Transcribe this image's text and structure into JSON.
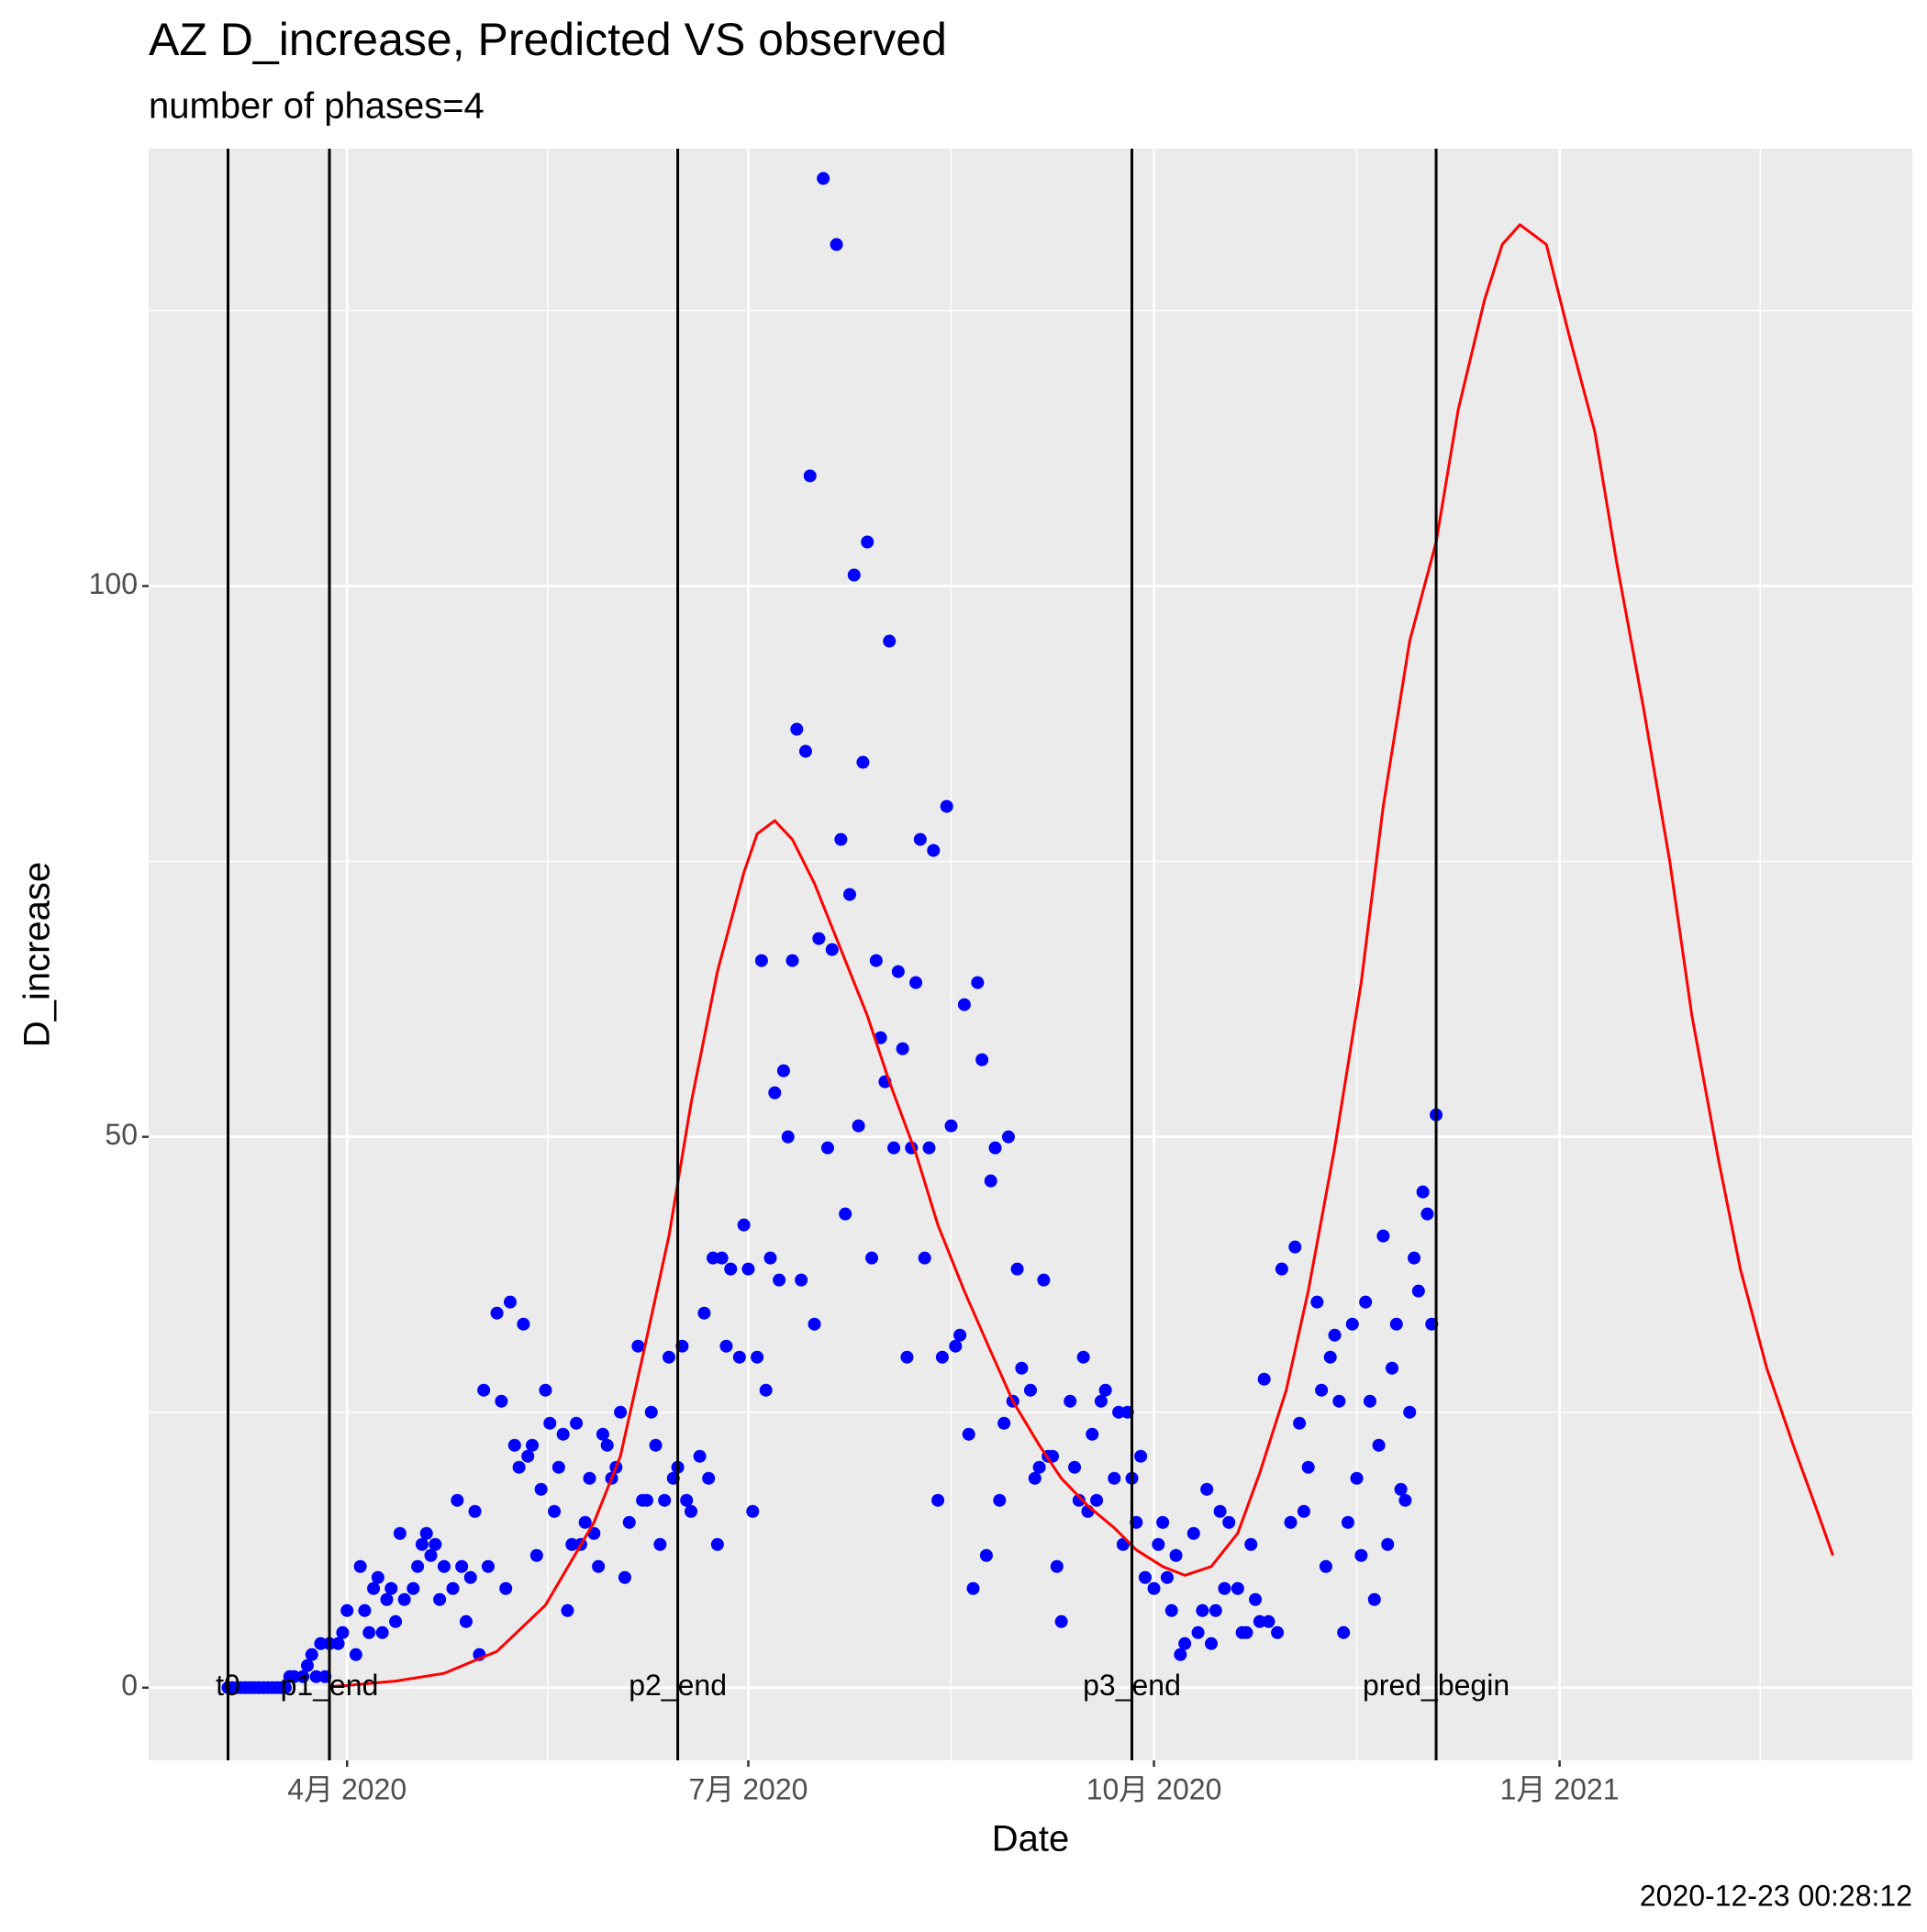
{
  "chart_data": {
    "type": "scatter",
    "title": "AZ D_increase, Predicted VS observed",
    "subtitle": "number of phases=4",
    "caption": "2020-12-23 00:28:12",
    "xlabel": "Date",
    "ylabel": "D_increase",
    "xlim": [
      18308,
      18708
    ],
    "ylim": [
      -6.6,
      139.7
    ],
    "xticks": [
      {
        "value": 18353,
        "label": "4月 2020"
      },
      {
        "value": 18444,
        "label": "7月 2020"
      },
      {
        "value": 18536,
        "label": "10月 2020"
      },
      {
        "value": 18628,
        "label": "1月 2021"
      }
    ],
    "yticks": [
      0,
      50,
      100
    ],
    "xminor": [
      18398.5,
      18490,
      18582,
      18673.5
    ],
    "yminor": [
      25,
      75,
      125
    ],
    "grid": true,
    "vlines": [
      {
        "x": 18326,
        "label": "t0"
      },
      {
        "x": 18349,
        "label": "p1_end"
      },
      {
        "x": 18428,
        "label": "p2_end"
      },
      {
        "x": 18531,
        "label": "p3_end"
      },
      {
        "x": 18600,
        "label": "pred_begin"
      }
    ],
    "series": [
      {
        "type": "scatter",
        "color": "#0000ff",
        "x": [
          18326,
          18327,
          18328,
          18329,
          18330,
          18331,
          18332,
          18333,
          18334,
          18335,
          18336,
          18337,
          18338,
          18339,
          18340,
          18341,
          18343,
          18344,
          18345,
          18346,
          18347,
          18348,
          18349,
          18351,
          18352,
          18353,
          18355,
          18356,
          18357,
          18358,
          18359,
          18360,
          18361,
          18362,
          18363,
          18364,
          18365,
          18366,
          18368,
          18369,
          18370,
          18371,
          18372,
          18373,
          18374,
          18375,
          18377,
          18378,
          18379,
          18380,
          18381,
          18382,
          18383,
          18384,
          18385,
          18387,
          18388,
          18389,
          18390,
          18391,
          18392,
          18393,
          18394,
          18395,
          18396,
          18397,
          18398,
          18399,
          18400,
          18401,
          18402,
          18403,
          18404,
          18405,
          18406,
          18407,
          18408,
          18409,
          18410,
          18411,
          18412,
          18413,
          18414,
          18415,
          18416,
          18417,
          18419,
          18420,
          18421,
          18422,
          18423,
          18424,
          18425,
          18426,
          18427,
          18428,
          18429,
          18430,
          18431,
          18433,
          18434,
          18435,
          18436,
          18437,
          18438,
          18439,
          18440,
          18442,
          18443,
          18444,
          18445,
          18446,
          18447,
          18448,
          18449,
          18450,
          18451,
          18452,
          18453,
          18454,
          18455,
          18456,
          18457,
          18458,
          18459,
          18460,
          18461,
          18462,
          18463,
          18464,
          18465,
          18466,
          18467,
          18468,
          18469,
          18470,
          18471,
          18472,
          18473,
          18474,
          18475,
          18476,
          18477,
          18478,
          18479,
          18480,
          18481,
          18482,
          18483,
          18484,
          18485,
          18486,
          18487,
          18488,
          18489,
          18490,
          18491,
          18492,
          18493,
          18494,
          18495,
          18496,
          18497,
          18498,
          18499,
          18500,
          18501,
          18502,
          18503,
          18504,
          18505,
          18506,
          18508,
          18509,
          18510,
          18511,
          18512,
          18513,
          18514,
          18515,
          18517,
          18518,
          18519,
          18520,
          18521,
          18522,
          18523,
          18524,
          18525,
          18527,
          18528,
          18529,
          18530,
          18531,
          18532,
          18533,
          18534,
          18536,
          18537,
          18538,
          18539,
          18540,
          18541,
          18542,
          18543,
          18545,
          18546,
          18547,
          18548,
          18549,
          18550,
          18551,
          18552,
          18553,
          18555,
          18556,
          18557,
          18558,
          18559,
          18560,
          18561,
          18562,
          18564,
          18565,
          18567,
          18568,
          18569,
          18570,
          18571,
          18573,
          18574,
          18575,
          18576,
          18577,
          18578,
          18579,
          18580,
          18581,
          18582,
          18583,
          18584,
          18585,
          18586,
          18587,
          18588,
          18589,
          18590,
          18591,
          18592,
          18593,
          18594,
          18595,
          18596,
          18597,
          18598,
          18599,
          18600
        ],
        "values": [
          0,
          0,
          0,
          0,
          0,
          0,
          0,
          0,
          0,
          0,
          0,
          0,
          0,
          0,
          1,
          1,
          1,
          2,
          3,
          1,
          4,
          1,
          4,
          4,
          5,
          7,
          3,
          11,
          7,
          5,
          9,
          10,
          5,
          8,
          9,
          6,
          14,
          8,
          9,
          11,
          13,
          14,
          12,
          13,
          8,
          11,
          9,
          17,
          11,
          6,
          10,
          16,
          3,
          27,
          11,
          34,
          26,
          9,
          35,
          22,
          20,
          33,
          21,
          22,
          12,
          18,
          27,
          24,
          16,
          20,
          23,
          7,
          13,
          24,
          13,
          15,
          19,
          14,
          11,
          23,
          22,
          19,
          20,
          25,
          10,
          15,
          31,
          17,
          17,
          25,
          22,
          13,
          17,
          30,
          19,
          20,
          31,
          17,
          16,
          21,
          34,
          19,
          39,
          13,
          39,
          31,
          38,
          30,
          42,
          38,
          16,
          30,
          66,
          27,
          39,
          54,
          37,
          56,
          50,
          66,
          87,
          37,
          85,
          110,
          33,
          68,
          137,
          49,
          67,
          131,
          77,
          43,
          72,
          101,
          51,
          84,
          104,
          39,
          66,
          59,
          55,
          95,
          49,
          65,
          58,
          30,
          49,
          64,
          77,
          39,
          49,
          76,
          17,
          30,
          80,
          51,
          31,
          32,
          62,
          23,
          9,
          64,
          57,
          12,
          46,
          49,
          17,
          24,
          50,
          26,
          38,
          29,
          27,
          19,
          20,
          37,
          21,
          21,
          11,
          6,
          26,
          20,
          17,
          30,
          16,
          23,
          17,
          26,
          27,
          19,
          25,
          13,
          25,
          19,
          15,
          21,
          10,
          9,
          13,
          15,
          10,
          7,
          12,
          3,
          4,
          14,
          5,
          7,
          18,
          4,
          7,
          16,
          9,
          15,
          9,
          5,
          5,
          13,
          8,
          6,
          28,
          6,
          5,
          38,
          15,
          40,
          24,
          16,
          20,
          35,
          27,
          11,
          30,
          32,
          26,
          5,
          15,
          33,
          19,
          12,
          35,
          26,
          8,
          22,
          41,
          13,
          29,
          33,
          18,
          17,
          25,
          39,
          36,
          45,
          43,
          33,
          52
        ]
      },
      {
        "type": "line",
        "color": "#ff0000",
        "x": [
          18349,
          18353,
          18364,
          18375,
          18387,
          18398,
          18409,
          18415,
          18420,
          18426,
          18431,
          18437,
          18443,
          18446,
          18450,
          18454,
          18459,
          18465,
          18471,
          18476,
          18482,
          18487,
          18493,
          18499,
          18504,
          18510,
          18515,
          18521,
          18527,
          18532,
          18538,
          18543,
          18549,
          18555,
          18560,
          18566,
          18571,
          18577,
          18583,
          18588,
          18594,
          18600,
          18605,
          18611,
          18615,
          18619,
          18625,
          18630,
          18636,
          18641,
          18647,
          18653,
          18658,
          18664,
          18669,
          18675,
          18681,
          18686,
          18690
        ],
        "values": [
          0.1,
          0.2,
          0.6,
          1.3,
          3.3,
          7.5,
          15,
          21,
          30,
          41,
          53,
          65,
          74,
          77.5,
          78.7,
          77,
          73,
          67,
          61,
          55,
          48.5,
          42,
          36,
          30.5,
          26,
          22,
          19,
          16.5,
          14.5,
          12.5,
          11,
          10.2,
          11,
          14,
          19.5,
          27,
          36,
          49,
          64,
          80,
          95,
          104,
          116,
          126,
          131,
          132.8,
          131,
          123,
          114,
          102,
          89,
          75,
          61,
          48,
          38,
          29,
          22,
          16.5,
          12
        ]
      }
    ]
  }
}
